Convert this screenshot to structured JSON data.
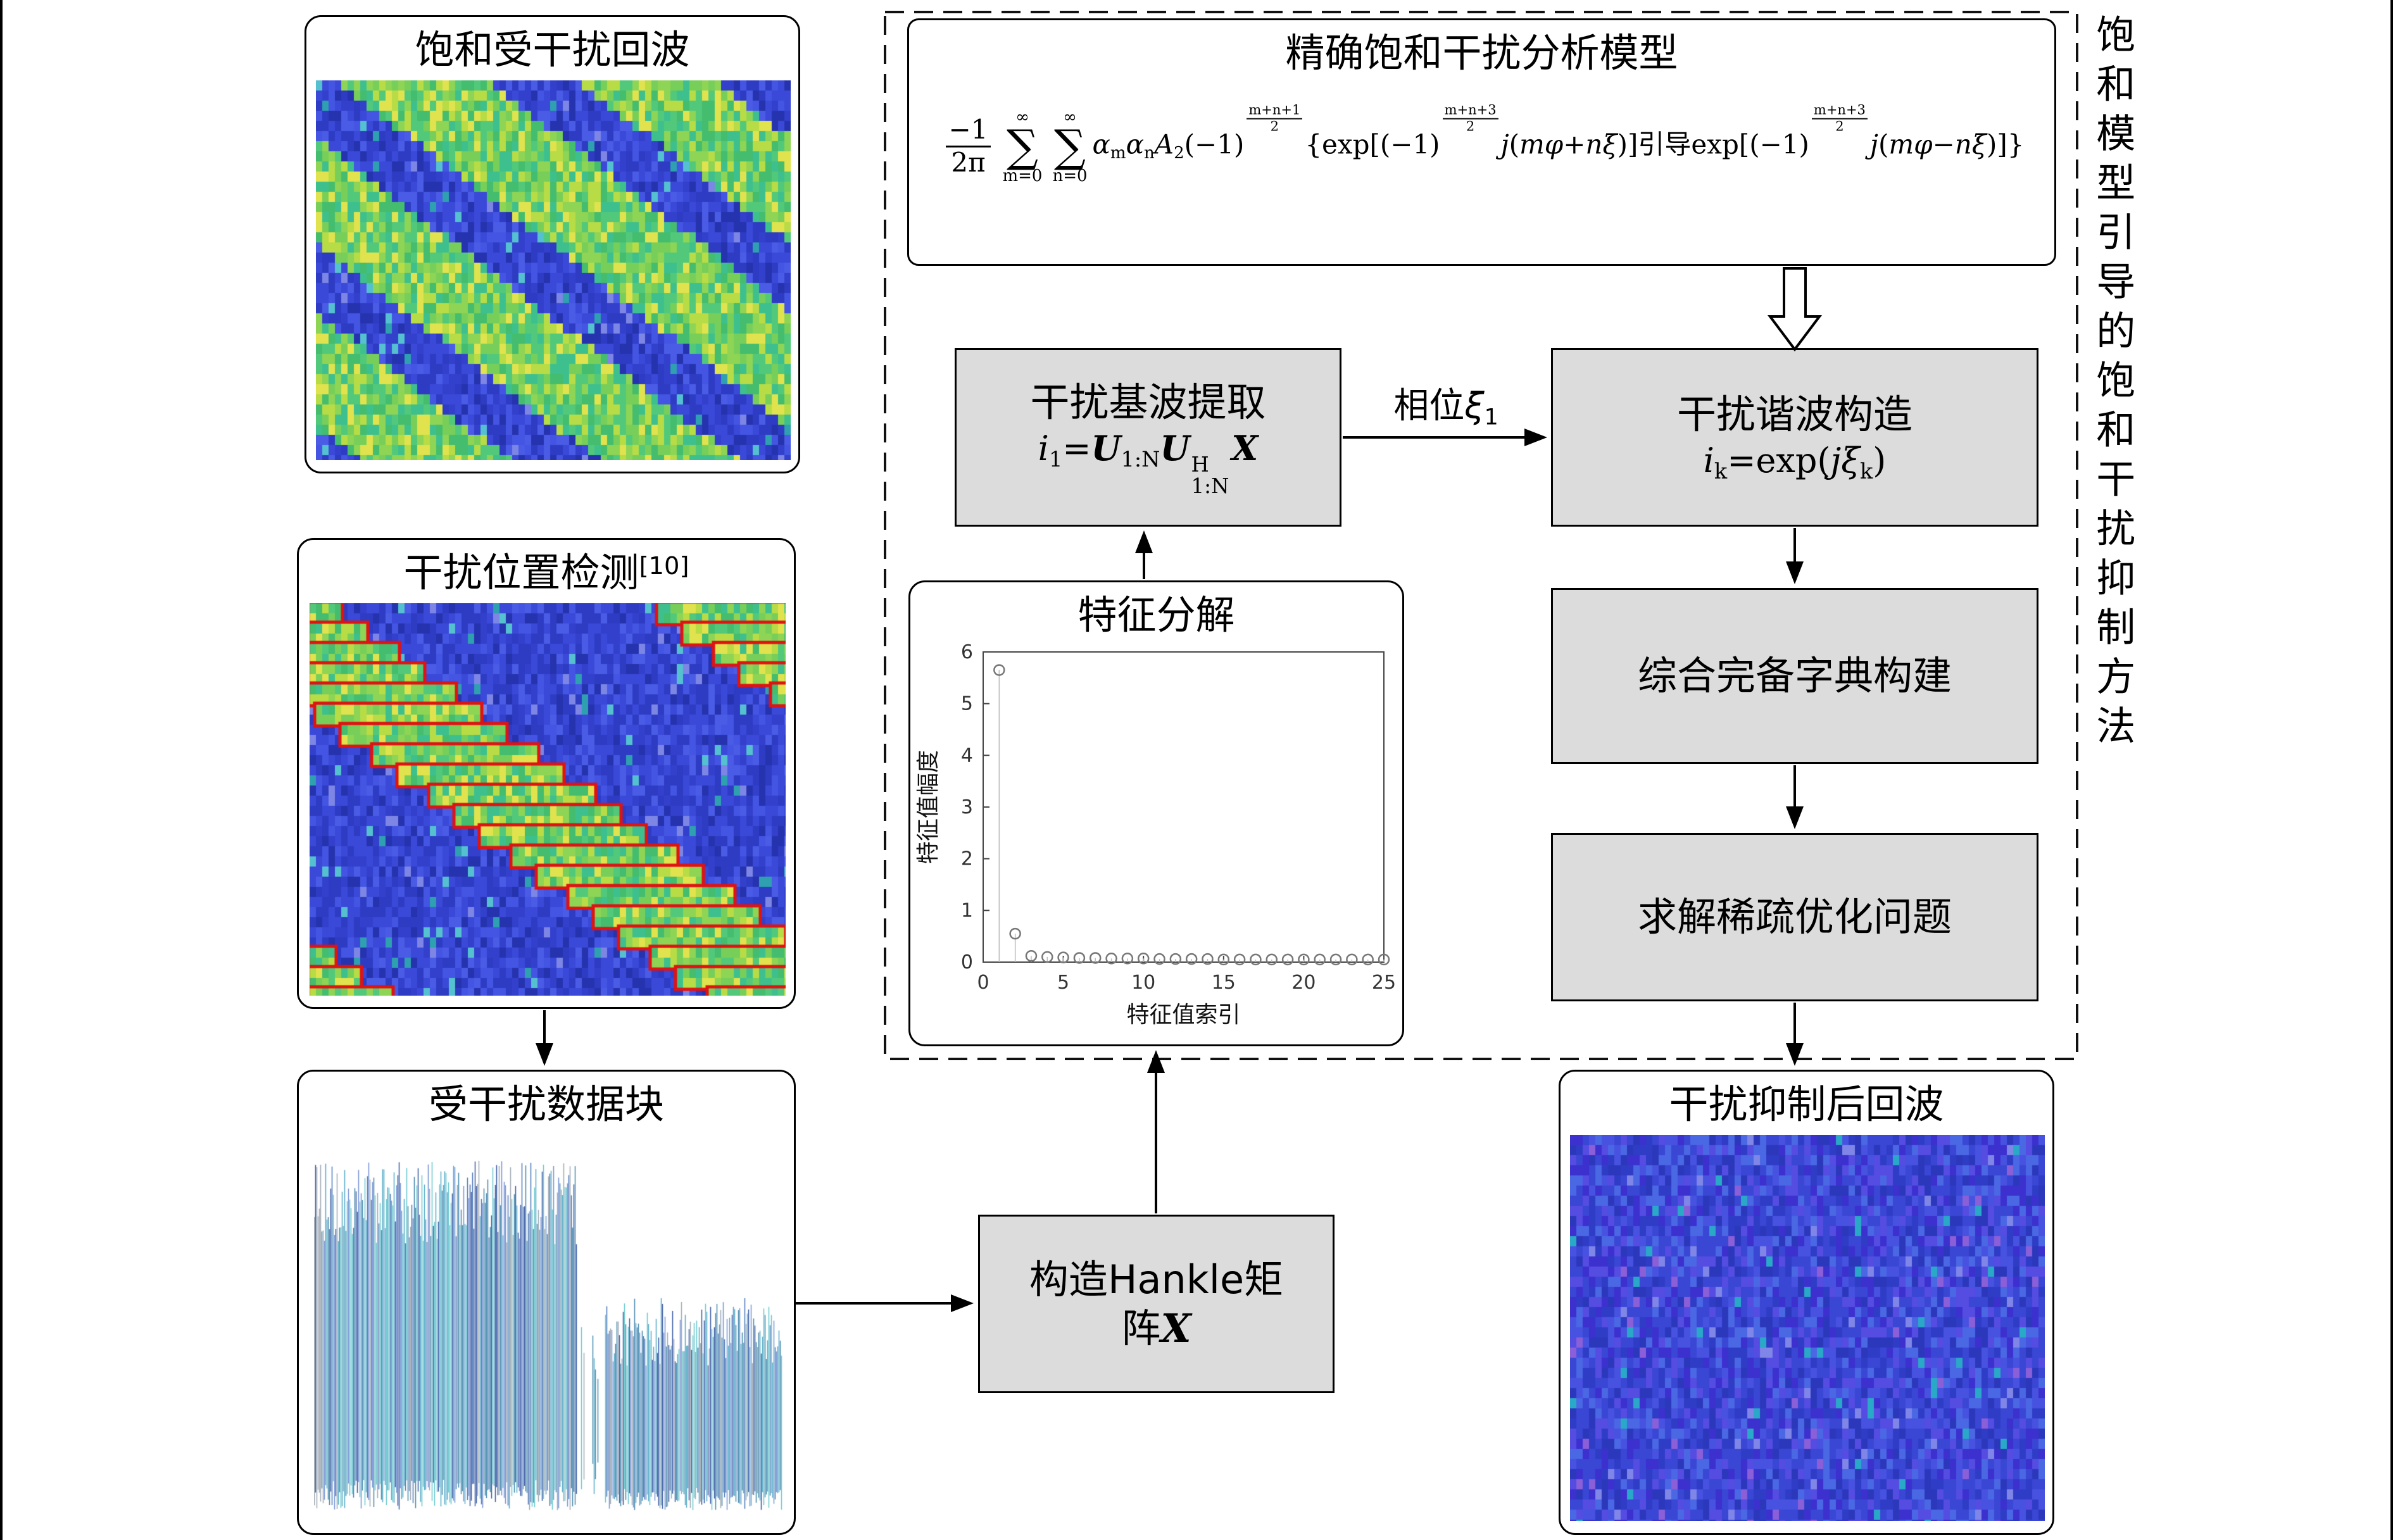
{
  "side_label": "饱和模型引导的饱和干扰抑制方法",
  "panels": {
    "saturated_echo": {
      "title": "饱和受干扰回波"
    },
    "interference_detection": {
      "title_tokens": [
        {
          "t": "cn",
          "s": "干扰位置检测"
        },
        {
          "t": "sup",
          "s": "[10]"
        }
      ]
    },
    "interfered_block": {
      "title": "受干扰数据块"
    },
    "suppressed_echo": {
      "title": "干扰抑制后回波"
    },
    "eigen": {
      "title": "特征分解"
    }
  },
  "model_box": {
    "title": "精确饱和干扰分析模型",
    "formula_tokens": [
      {
        "t": "frac",
        "top": "−1",
        "bot": "2π"
      },
      {
        "t": "sum",
        "top": "∞",
        "bot": "m=0"
      },
      {
        "t": "sum",
        "top": "∞",
        "bot": "n=0"
      },
      {
        "t": "it",
        "s": "α"
      },
      {
        "t": "sub",
        "s": "m"
      },
      {
        "t": "it",
        "s": "α"
      },
      {
        "t": "sub",
        "s": "n"
      },
      {
        "t": "it",
        "s": "A"
      },
      {
        "t": "sub",
        "s": "2"
      },
      {
        "t": "txt",
        "s": "(−1)"
      },
      {
        "t": "supfrac",
        "top": "m+n+1",
        "bot": "2"
      },
      {
        "t": "txt",
        "s": "{exp[(−1)"
      },
      {
        "t": "supfrac",
        "top": "m+n+3",
        "bot": "2"
      },
      {
        "t": "it",
        "s": "j"
      },
      {
        "t": "txt",
        "s": "("
      },
      {
        "t": "it",
        "s": "mφ"
      },
      {
        "t": "txt",
        "s": "+"
      },
      {
        "t": "it",
        "s": "nξ"
      },
      {
        "t": "txt",
        "s": ")]"
      },
      {
        "t": "cn",
        "s": "引导"
      },
      {
        "t": "txt",
        "s": "exp[(−1)"
      },
      {
        "t": "supfrac",
        "top": "m+n+3",
        "bot": "2"
      },
      {
        "t": "it",
        "s": "j"
      },
      {
        "t": "txt",
        "s": "("
      },
      {
        "t": "it",
        "s": "mφ"
      },
      {
        "t": "txt",
        "s": "−"
      },
      {
        "t": "it",
        "s": "nξ"
      },
      {
        "t": "txt",
        "s": ")]}"
      }
    ]
  },
  "flow": {
    "fundamental": {
      "label": "干扰基波提取",
      "formula_tokens": [
        {
          "t": "it",
          "s": "i"
        },
        {
          "t": "sub",
          "s": "1"
        },
        {
          "t": "txt",
          "s": "="
        },
        {
          "t": "bi",
          "s": "U"
        },
        {
          "t": "sub",
          "s": "1:N"
        },
        {
          "t": "bi",
          "s": "U"
        },
        {
          "t": "ss",
          "sup": "H",
          "sub": "1:N"
        },
        {
          "t": "bi",
          "s": "X"
        }
      ]
    },
    "harmonic": {
      "label": "干扰谐波构造",
      "formula_tokens": [
        {
          "t": "it",
          "s": "i"
        },
        {
          "t": "sub",
          "s": "k"
        },
        {
          "t": "txt",
          "s": "=exp("
        },
        {
          "t": "it",
          "s": "j"
        },
        {
          "t": "it",
          "s": "ξ"
        },
        {
          "t": "sub",
          "s": "k"
        },
        {
          "t": "txt",
          "s": ")"
        }
      ]
    },
    "dictionary": {
      "label": "综合完备字典构建"
    },
    "sparse": {
      "label": "求解稀疏优化问题"
    },
    "hankel_tokens": [
      {
        "t": "cn",
        "s": "构造"
      },
      {
        "t": "txt",
        "s": "Hankle"
      },
      {
        "t": "cn",
        "s": "矩"
      },
      {
        "t": "br"
      },
      {
        "t": "cn",
        "s": "阵"
      },
      {
        "t": "bi",
        "s": "X"
      }
    ],
    "phase_label_tokens": [
      {
        "t": "cn",
        "s": "相位"
      },
      {
        "t": "it",
        "s": "ξ"
      },
      {
        "t": "sub",
        "s": "1"
      }
    ]
  },
  "chart_data": {
    "type": "scatter",
    "title": "特征分解",
    "xlabel": "特征值索引",
    "ylabel": "特征值幅度",
    "xlim": [
      0,
      25
    ],
    "ylim": [
      0,
      6
    ],
    "xticks": [
      0,
      5,
      10,
      15,
      20,
      25
    ],
    "yticks": [
      0,
      1,
      2,
      3,
      4,
      5,
      6
    ],
    "x": [
      1,
      2,
      3,
      4,
      5,
      6,
      7,
      8,
      9,
      10,
      11,
      12,
      13,
      14,
      15,
      16,
      17,
      18,
      19,
      20,
      21,
      22,
      23,
      24,
      25
    ],
    "y": [
      5.65,
      0.55,
      0.12,
      0.1,
      0.09,
      0.08,
      0.08,
      0.07,
      0.07,
      0.07,
      0.06,
      0.06,
      0.06,
      0.06,
      0.05,
      0.05,
      0.05,
      0.05,
      0.05,
      0.05,
      0.05,
      0.05,
      0.05,
      0.05,
      0.05
    ],
    "grid": false,
    "legend": null,
    "marker": "circle-open"
  },
  "graphics": {
    "heatmap_bg": [
      "#2e3cc4",
      "#3a49d8",
      "#2633ae",
      "#4355e2",
      "#3240cc",
      "#3a49d8",
      "#2e3cc4",
      "#4a5ce6"
    ],
    "heatmap_accent": [
      "#55c0d0",
      "#7d85e5",
      "#2ea0b0"
    ],
    "stripe_colors": [
      "#44bd6e",
      "#52c97a",
      "#77cf5a",
      "#b7dc46",
      "#e0e34d",
      "#3ec08e",
      "#8ed455"
    ],
    "red_box_color": "#e01212",
    "suppressed_bg": [
      "#3a46d4",
      "#2c38bc",
      "#4753e0",
      "#3c30cf",
      "#554ce2",
      "#2f3dc6",
      "#4a67e4",
      "#3a46d4"
    ],
    "suppressed_accent": [
      "#7f86e8",
      "#2aa8c8",
      "#8a5fd8"
    ],
    "wave_colors": [
      "#3f6fb5",
      "#4aa6c4",
      "#2d4f9e",
      "#5ec3cb",
      "#6f8ed2",
      "#9aa4ae",
      "#3b82a8"
    ]
  }
}
